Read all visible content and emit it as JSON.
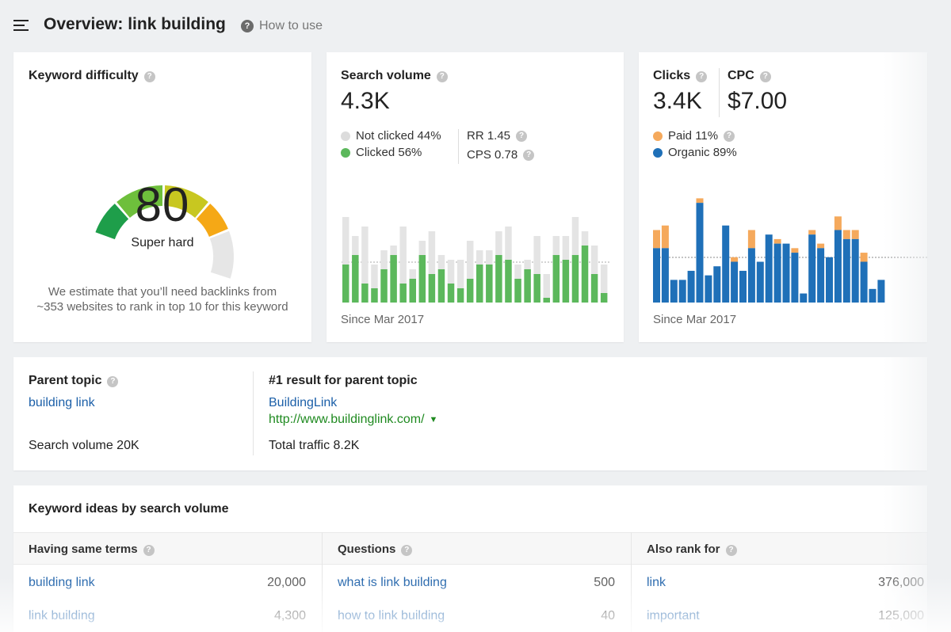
{
  "header": {
    "title": "Overview: link building",
    "how_to_use": "How to use"
  },
  "keyword_difficulty": {
    "title": "Keyword difficulty",
    "value": "80",
    "label": "Super hard",
    "description_line1": "We estimate that you’ll need backlinks from",
    "description_line2": "~353 websites to rank in top 10 for this keyword",
    "score_fraction": 0.8
  },
  "search_volume": {
    "title": "Search volume",
    "value": "4.3K",
    "not_clicked": "Not clicked 44%",
    "clicked": "Clicked 56%",
    "rr": "RR 1.45",
    "cps": "CPS 0.78",
    "since": "Since Mar 2017",
    "colors": {
      "clicked": "#5cb85c",
      "not_clicked": "#e3e3e3"
    }
  },
  "clicks": {
    "title": "Clicks",
    "value": "3.4K",
    "cpc_title": "CPC",
    "cpc_value": "$7.00",
    "paid": "Paid 11%",
    "organic": "Organic 89%",
    "since": "Since Mar 2017",
    "colors": {
      "paid": "#f5a95c",
      "organic": "#1f70b8"
    }
  },
  "parent_topic": {
    "title": "Parent topic",
    "link": "building link",
    "search_volume": "Search volume 20K",
    "result_title": "#1 result for parent topic",
    "result_name": "BuildingLink",
    "result_url": "http://www.buildinglink.com/",
    "total_traffic": "Total traffic 8.2K"
  },
  "keyword_ideas": {
    "title": "Keyword ideas by search volume",
    "columns": [
      {
        "title": "Having same terms",
        "rows": [
          {
            "keyword": "building link",
            "volume": "20,000"
          },
          {
            "keyword": "link building",
            "volume": "4,300"
          }
        ]
      },
      {
        "title": "Questions",
        "rows": [
          {
            "keyword": "what is link building",
            "volume": "500"
          },
          {
            "keyword": "how to link building",
            "volume": "40"
          }
        ]
      },
      {
        "title": "Also rank for",
        "rows": [
          {
            "keyword": "link",
            "volume": "376,000"
          },
          {
            "keyword": "important",
            "volume": "125,000"
          }
        ]
      }
    ]
  },
  "chart_data": [
    {
      "type": "bar",
      "series": [
        {
          "values": [
            8,
            10,
            4,
            3,
            7,
            10,
            4,
            5,
            10,
            6,
            7,
            4,
            3,
            5,
            8,
            8,
            10,
            9,
            5,
            7,
            6,
            1,
            10,
            9,
            10,
            12,
            6,
            2
          ]
        },
        {
          "values": [
            10,
            4,
            12,
            5,
            4,
            2,
            12,
            2,
            3,
            9,
            3,
            5,
            6,
            8,
            3,
            3,
            5,
            7,
            3,
            2,
            8,
            5,
            4,
            5,
            8,
            3,
            6,
            6
          ]
        }
      ]
    },
    {
      "type": "bar",
      "series": [
        {
          "values": [
            12,
            12,
            5,
            5,
            7,
            22,
            6,
            8,
            17,
            9,
            7,
            12,
            9,
            15,
            13,
            13,
            11,
            2,
            15,
            12,
            10,
            16,
            14,
            14,
            9,
            3,
            5
          ]
        },
        {
          "values": [
            4,
            5,
            0,
            0,
            0,
            1,
            0,
            0,
            0,
            1,
            0,
            4,
            0,
            0,
            1,
            0,
            1,
            0,
            1,
            1,
            0,
            3,
            2,
            2,
            2,
            0,
            0
          ]
        }
      ]
    }
  ]
}
